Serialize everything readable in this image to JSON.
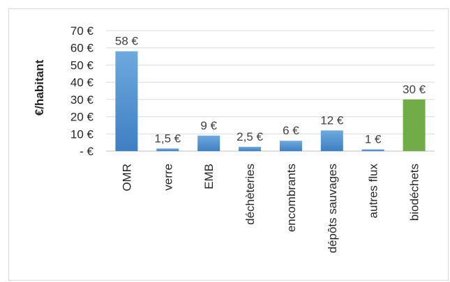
{
  "chart_data": {
    "type": "bar",
    "ylabel": "€/habitant",
    "categories": [
      "OMR",
      "verre",
      "EMB",
      "déchèteries",
      "encombrants",
      "dépôts sauvages",
      "autres flux",
      "biodéchets"
    ],
    "values": [
      58,
      1.5,
      9,
      2.5,
      6,
      12,
      1,
      30
    ],
    "data_labels": [
      "58 €",
      "1,5 €",
      "9 €",
      "2,5 €",
      "6 €",
      "12 €",
      "1 €",
      "30 €"
    ],
    "bar_colors": [
      "#5b9bd5",
      "#5b9bd5",
      "#5b9bd5",
      "#5b9bd5",
      "#5b9bd5",
      "#5b9bd5",
      "#5b9bd5",
      "#70ad47"
    ],
    "ylim": [
      0,
      70
    ],
    "yticks": [
      0,
      10,
      20,
      30,
      40,
      50,
      60,
      70
    ],
    "ytick_labels": [
      "-  €",
      "10 €",
      "20 €",
      "30 €",
      "40 €",
      "50 €",
      "60 €",
      "70 €"
    ],
    "grid": true,
    "legend": "none"
  }
}
